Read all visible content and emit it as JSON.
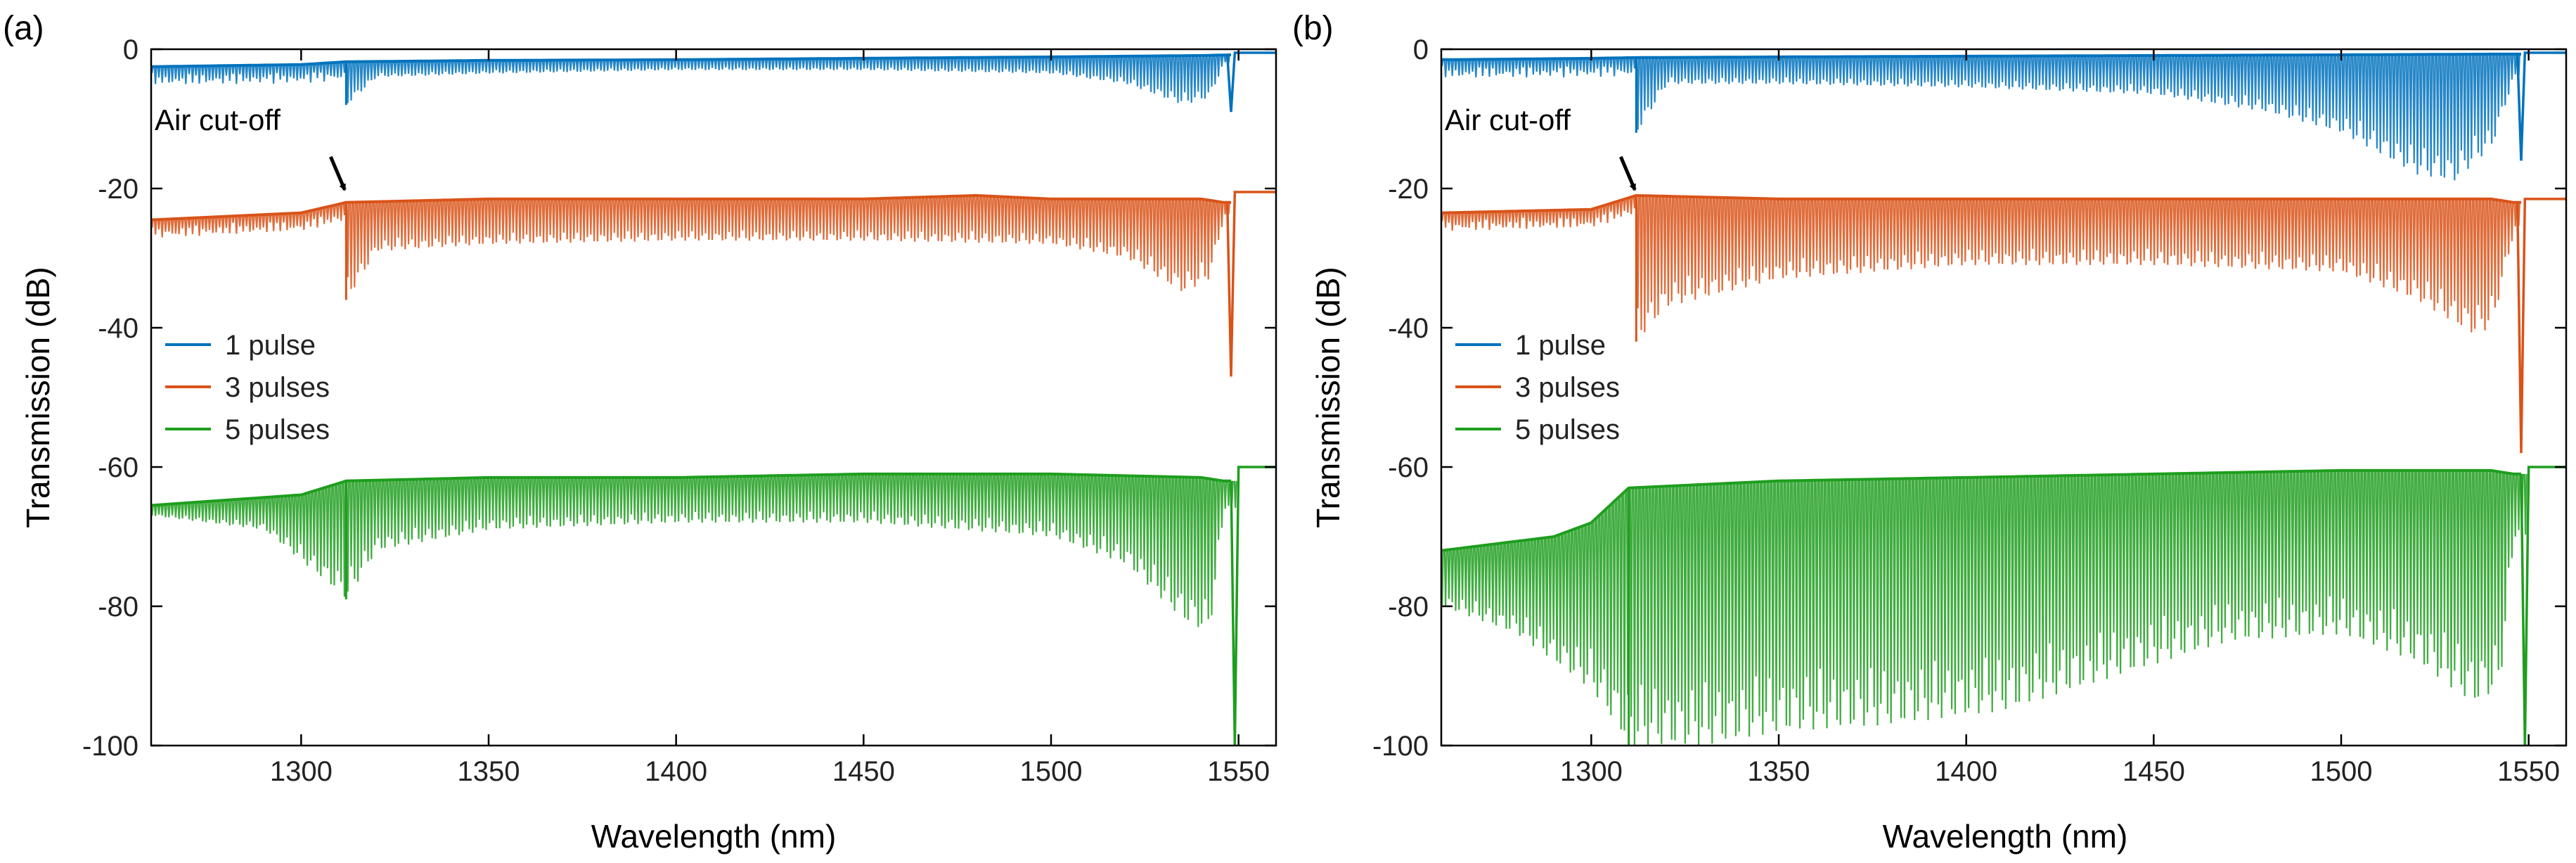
{
  "figure": {
    "panel_labels": [
      "(a)",
      "(b)"
    ]
  },
  "colors": {
    "series": [
      "#0072BD",
      "#D95319",
      "#1E9E1E"
    ],
    "axis": "#000000",
    "background": "#ffffff"
  },
  "chart_data": [
    {
      "panel": "(a)",
      "type": "line",
      "title": "",
      "xlabel": "Wavelength (nm)",
      "ylabel": "Transmission (dB)",
      "xlim": [
        1260,
        1560
      ],
      "ylim": [
        -100,
        0
      ],
      "xticks": [
        1300,
        1350,
        1400,
        1450,
        1500,
        1550
      ],
      "yticks": [
        0,
        -20,
        -40,
        -60,
        -80,
        -100
      ],
      "grid": false,
      "legend": {
        "placement": "middle-left",
        "entries": [
          "1 pulse",
          "3 pulses",
          "5 pulses"
        ]
      },
      "annotation": {
        "text": "Air cut-off",
        "x": 1312,
        "y": -21
      },
      "series": [
        {
          "name": "1 pulse",
          "baseline": {
            "x": [
              1260,
              1300,
              1312,
              1350,
              1400,
              1450,
              1500,
              1540,
              1548
            ],
            "y": [
              -2.5,
              -2.2,
              -1.8,
              -1.6,
              -1.5,
              -1.3,
              -1.1,
              -0.9,
              -0.8
            ]
          },
          "dip_envelope": {
            "x": [
              1312,
              1320,
              1350,
              1400,
              1450,
              1500,
              1520,
              1535,
              1542,
              1546
            ],
            "y": [
              -8,
              -4,
              -3.5,
              -3,
              -3,
              -3.5,
              -5,
              -8,
              -7,
              -2
            ]
          },
          "cutoff_x": 1312,
          "edge_x": 1548,
          "edge_min": -9,
          "tail_level": -0.5
        },
        {
          "name": "3 pulses",
          "baseline": {
            "x": [
              1260,
              1300,
              1312,
              1350,
              1400,
              1450,
              1480,
              1500,
              1540,
              1546
            ],
            "y": [
              -24.5,
              -23.5,
              -22,
              -21.5,
              -21.5,
              -21.5,
              -21,
              -21.5,
              -21.5,
              -22
            ]
          },
          "dip_envelope": {
            "x": [
              1312,
              1320,
              1350,
              1400,
              1450,
              1500,
              1520,
              1535,
              1542,
              1546
            ],
            "y": [
              -36,
              -29,
              -28,
              -27.5,
              -27.5,
              -28,
              -30,
              -35,
              -33,
              -24
            ]
          },
          "cutoff_x": 1312,
          "edge_x": 1548,
          "edge_min": -47,
          "tail_level": -20.5
        },
        {
          "name": "5 pulses",
          "baseline": {
            "x": [
              1260,
              1300,
              1312,
              1350,
              1400,
              1450,
              1500,
              1540,
              1546
            ],
            "y": [
              -65.5,
              -64,
              -62,
              -61.5,
              -61.5,
              -61,
              -61,
              -61.5,
              -62
            ]
          },
          "dip_envelope": {
            "x": [
              1260,
              1290,
              1312,
              1320,
              1350,
              1400,
              1450,
              1500,
              1520,
              1535,
              1542,
              1546
            ],
            "y": [
              -67,
              -69,
              -79,
              -72,
              -69,
              -68,
              -68,
              -70,
              -74,
              -82,
              -84,
              -66
            ]
          },
          "cutoff_x": 1312,
          "edge_x": 1549,
          "edge_min": -100,
          "tail_level": -60
        }
      ]
    },
    {
      "panel": "(b)",
      "type": "line",
      "title": "",
      "xlabel": "Wavelength (nm)",
      "ylabel": "Transmission (dB)",
      "xlim": [
        1260,
        1560
      ],
      "ylim": [
        -100,
        0
      ],
      "xticks": [
        1300,
        1350,
        1400,
        1450,
        1500,
        1550
      ],
      "yticks": [
        0,
        -20,
        -40,
        -60,
        -80,
        -100
      ],
      "grid": false,
      "legend": {
        "placement": "middle-left",
        "entries": [
          "1 pulse",
          "3 pulses",
          "5 pulses"
        ]
      },
      "annotation": {
        "text": "Air cut-off",
        "x": 1312,
        "y": -21
      },
      "series": [
        {
          "name": "1 pulse",
          "baseline": {
            "x": [
              1260,
              1300,
              1312,
              1350,
              1400,
              1450,
              1500,
              1540,
              1547
            ],
            "y": [
              -1.5,
              -1.3,
              -1.2,
              -1.1,
              -1,
              -0.9,
              -0.8,
              -0.7,
              -0.7
            ]
          },
          "dip_envelope": {
            "x": [
              1312,
              1320,
              1350,
              1400,
              1450,
              1480,
              1500,
              1520,
              1530,
              1540,
              1546
            ],
            "y": [
              -12,
              -5,
              -5,
              -5.5,
              -6.5,
              -9,
              -12,
              -18,
              -19,
              -14,
              -4
            ]
          },
          "cutoff_x": 1312,
          "edge_x": 1548,
          "edge_min": -16,
          "tail_level": -0.5
        },
        {
          "name": "3 pulses",
          "baseline": {
            "x": [
              1260,
              1300,
              1312,
              1350,
              1400,
              1450,
              1500,
              1540,
              1546
            ],
            "y": [
              -23.5,
              -23,
              -21,
              -21.5,
              -21.5,
              -21.5,
              -21.5,
              -21.5,
              -22
            ]
          },
          "dip_envelope": {
            "x": [
              1312,
              1320,
              1350,
              1400,
              1450,
              1500,
              1520,
              1535,
              1540,
              1546
            ],
            "y": [
              -42,
              -37,
              -33,
              -31,
              -31,
              -32,
              -36,
              -41,
              -40,
              -26
            ]
          },
          "cutoff_x": 1312,
          "edge_x": 1548,
          "edge_min": -58,
          "tail_level": -21.5
        },
        {
          "name": "5 pulses",
          "baseline": {
            "x": [
              1260,
              1290,
              1300,
              1310,
              1350,
              1400,
              1450,
              1500,
              1540,
              1546
            ],
            "y": [
              -72,
              -70,
              -68,
              -63,
              -62,
              -61.5,
              -61,
              -60.5,
              -60.5,
              -61
            ]
          },
          "dip_envelope": {
            "x": [
              1260,
              1280,
              1300,
              1310,
              1330,
              1350,
              1380,
              1410,
              1440,
              1470,
              1500,
              1520,
              1535,
              1542,
              1546
            ],
            "y": [
              -80,
              -84,
              -92,
              -100,
              -100,
              -98,
              -97,
              -95,
              -90,
              -85,
              -84,
              -88,
              -94,
              -92,
              -70
            ]
          },
          "cutoff_x": 1310,
          "edge_x": 1549,
          "edge_min": -100,
          "tail_level": -60
        }
      ]
    }
  ]
}
